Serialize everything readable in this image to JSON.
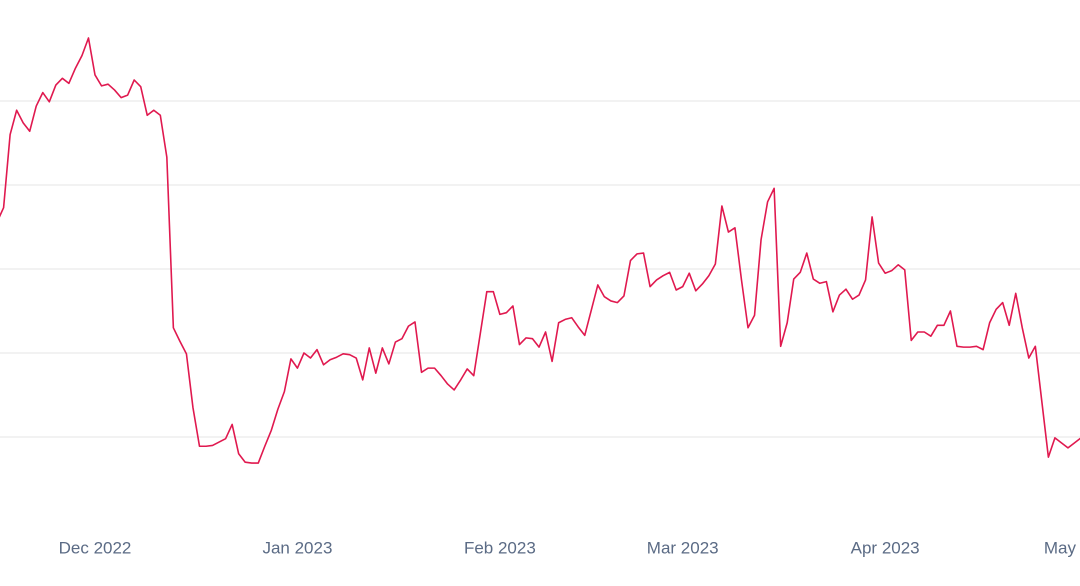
{
  "chart_data": {
    "type": "line",
    "x": [
      -15,
      -14,
      -13,
      -12,
      -11,
      -10,
      -9,
      -8,
      -7,
      -6,
      -5,
      -4,
      -3,
      -2,
      -1,
      0,
      1,
      2,
      3,
      4,
      5,
      6,
      7,
      8,
      9,
      10,
      11,
      12,
      13,
      14,
      15,
      16,
      17,
      18,
      19,
      20,
      21,
      22,
      23,
      24,
      25,
      26,
      27,
      28,
      29,
      30,
      31,
      32,
      33,
      34,
      35,
      36,
      37,
      38,
      39,
      40,
      41,
      42,
      43,
      44,
      45,
      46,
      47,
      48,
      49,
      50,
      51,
      52,
      53,
      54,
      55,
      56,
      57,
      58,
      59,
      60,
      61,
      62,
      63,
      64,
      65,
      66,
      67,
      68,
      69,
      70,
      71,
      72,
      73,
      74,
      75,
      76,
      77,
      78,
      79,
      80,
      81,
      82,
      83,
      84,
      85,
      86,
      87,
      88,
      89,
      90,
      91,
      92,
      93,
      94,
      95,
      96,
      97,
      98,
      99,
      100,
      101,
      102,
      103,
      104,
      105,
      106,
      107,
      108,
      109,
      110,
      111,
      112,
      113,
      114,
      115,
      116,
      117,
      118,
      119,
      120,
      121,
      122,
      123,
      124,
      125,
      126,
      127,
      128,
      129,
      130,
      131,
      132,
      133,
      134,
      135,
      136,
      137,
      138,
      139,
      140,
      141,
      142,
      143,
      144,
      145,
      146,
      147,
      148,
      149,
      150,
      151
    ],
    "series": [
      {
        "color": "#e0194f",
        "values": [
          3.56,
          3.73,
          4.6,
          4.89,
          4.74,
          4.64,
          4.94,
          5.1,
          4.99,
          5.19,
          5.27,
          5.21,
          5.39,
          5.54,
          5.75,
          5.31,
          5.18,
          5.2,
          5.13,
          5.04,
          5.07,
          5.25,
          5.17,
          4.83,
          4.89,
          4.83,
          4.33,
          2.3,
          2.14,
          1.99,
          1.35,
          0.89,
          0.89,
          0.9,
          0.94,
          0.98,
          1.15,
          0.8,
          0.7,
          0.69,
          0.69,
          0.89,
          1.08,
          1.33,
          1.54,
          1.93,
          1.82,
          2.0,
          1.94,
          2.04,
          1.86,
          1.92,
          1.95,
          1.99,
          1.98,
          1.94,
          1.68,
          2.06,
          1.76,
          2.06,
          1.87,
          2.13,
          2.17,
          2.32,
          2.37,
          1.77,
          1.82,
          1.82,
          1.73,
          1.63,
          1.56,
          1.68,
          1.81,
          1.73,
          2.23,
          2.73,
          2.73,
          2.46,
          2.48,
          2.56,
          2.1,
          2.18,
          2.17,
          2.07,
          2.25,
          1.9,
          2.36,
          2.4,
          2.42,
          2.31,
          2.21,
          2.51,
          2.81,
          2.67,
          2.62,
          2.6,
          2.68,
          3.1,
          3.18,
          3.19,
          2.79,
          2.87,
          2.92,
          2.96,
          2.75,
          2.79,
          2.95,
          2.74,
          2.82,
          2.92,
          3.06,
          3.75,
          3.44,
          3.49,
          2.87,
          2.3,
          2.45,
          3.35,
          3.8,
          3.96,
          2.08,
          2.36,
          2.88,
          2.96,
          3.19,
          2.88,
          2.83,
          2.85,
          2.49,
          2.69,
          2.76,
          2.64,
          2.69,
          2.87,
          3.62,
          3.07,
          2.95,
          2.98,
          3.05,
          2.99,
          2.15,
          2.25,
          2.25,
          2.2,
          2.33,
          2.33,
          2.5,
          2.08,
          2.07,
          2.07,
          2.08,
          2.04,
          2.36,
          2.52,
          2.6,
          2.33,
          2.71,
          2.3,
          1.94,
          2.08,
          1.42,
          0.76,
          0.99,
          0.93,
          0.87,
          0.93,
          0.99
        ]
      }
    ],
    "xlim": [
      -14.55,
      150.84
    ],
    "xticks": [
      {
        "value": 0,
        "label": "Dec 2022"
      },
      {
        "value": 31,
        "label": "Jan 2023"
      },
      {
        "value": 62,
        "label": "Feb 2023"
      },
      {
        "value": 90,
        "label": "Mar 2023"
      },
      {
        "value": 121,
        "label": "Apr 2023"
      },
      {
        "value": 151,
        "label": "May"
      }
    ],
    "ylim": [
      0,
      6
    ],
    "yticks": [
      1,
      2,
      3,
      4,
      5
    ],
    "grid": true
  }
}
